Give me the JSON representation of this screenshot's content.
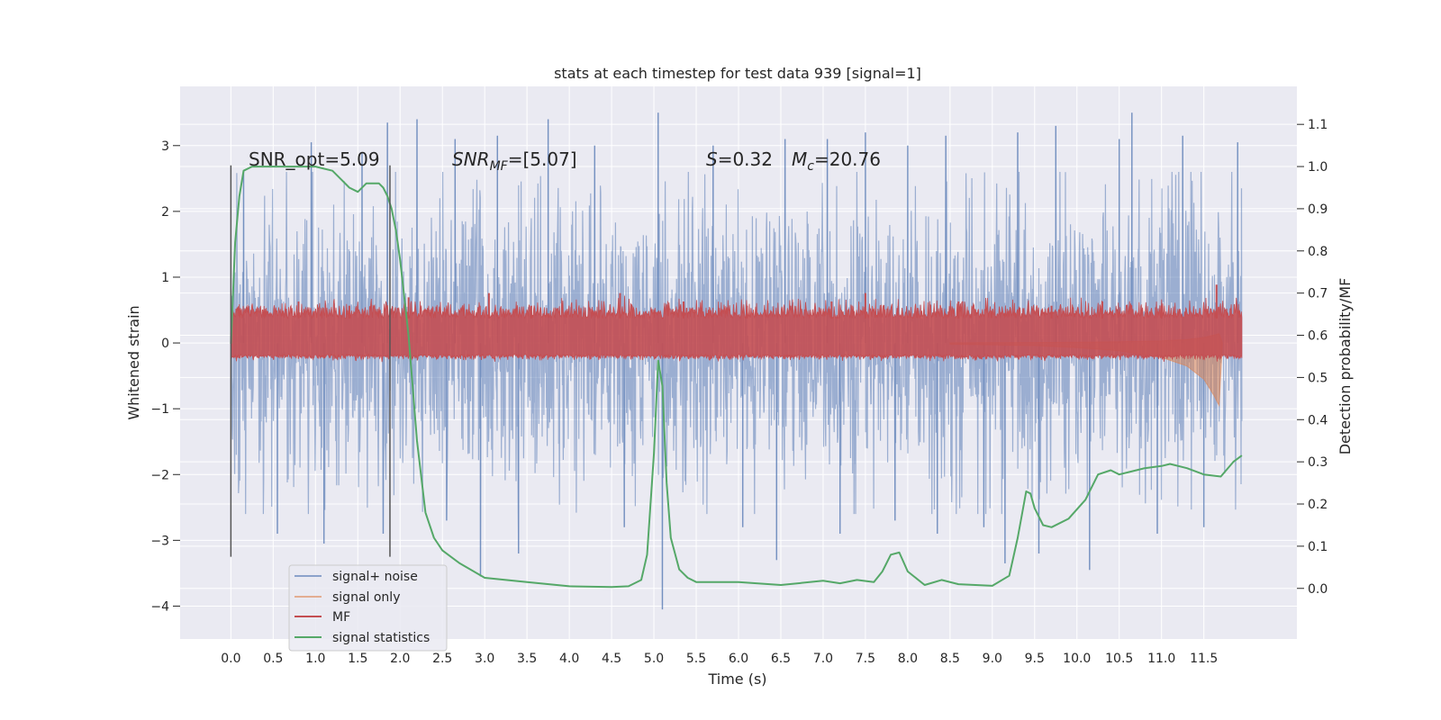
{
  "chart_data": {
    "type": "line",
    "title": "stats at each timestep for test data 939 [signal=1]",
    "xlabel": "Time (s)",
    "ylabel": "Whitened strain",
    "y2label": "Detection probability/MF",
    "xlim": [
      -0.6,
      12.6
    ],
    "ylim": [
      -4.5,
      3.9
    ],
    "y2lim": [
      -0.12,
      1.19
    ],
    "grid": true,
    "legend_position": "lower-left",
    "xticks": [
      0.0,
      0.5,
      1.0,
      1.5,
      2.0,
      2.5,
      3.0,
      3.5,
      4.0,
      4.5,
      5.0,
      5.5,
      6.0,
      6.5,
      7.0,
      7.5,
      8.0,
      8.5,
      9.0,
      9.5,
      10.0,
      10.5,
      11.0,
      11.5
    ],
    "xtick_labels": [
      "0.0",
      "0.5",
      "1.0",
      "1.5",
      "2.0",
      "2.5",
      "3.0",
      "3.5",
      "4.0",
      "4.5",
      "5.0",
      "5.5",
      "6.0",
      "6.5",
      "7.0",
      "7.5",
      "8.0",
      "8.5",
      "9.0",
      "9.5",
      "10.0",
      "10.5",
      "11.0",
      "11.5"
    ],
    "yticks": [
      -4,
      -3,
      -2,
      -1,
      0,
      1,
      2,
      3
    ],
    "ytick_labels": [
      "−4",
      "−3",
      "−2",
      "−1",
      "0",
      "1",
      "2",
      "3"
    ],
    "y2ticks": [
      0.0,
      0.1,
      0.2,
      0.3,
      0.4,
      0.5,
      0.6,
      0.7,
      0.8,
      0.9,
      1.0,
      1.1
    ],
    "y2tick_labels": [
      "0.0",
      "0.1",
      "0.2",
      "0.3",
      "0.4",
      "0.5",
      "0.6",
      "0.7",
      "0.8",
      "0.9",
      "1.0",
      "1.1"
    ],
    "annotations": {
      "snr_opt": "SNR_opt=5.09",
      "snr_mf_main": "SNR",
      "snr_mf_sub": "MF",
      "snr_mf_value": "=[5.07]",
      "s_symbol": "S",
      "s_value": "=0.32",
      "mc_symbol": "M",
      "mc_sub": "c",
      "mc_value": "=20.76"
    },
    "vertical_markers": [
      {
        "x": 0.0,
        "y_top": 2.7,
        "y_bottom": -3.25
      },
      {
        "x": 1.88,
        "y_top": 2.7,
        "y_bottom": -3.25
      }
    ],
    "series": [
      {
        "name": "signal+ noise",
        "color": "#4c72b0",
        "axis": "left",
        "style": "noise band",
        "x_range": [
          0.0,
          11.95
        ],
        "typical_range": [
          -2.0,
          2.0
        ],
        "spikes": [
          {
            "x": 0.15,
            "y": 2.6
          },
          {
            "x": 0.55,
            "y": -2.9
          },
          {
            "x": 0.95,
            "y": 3.05
          },
          {
            "x": 1.1,
            "y": -3.05
          },
          {
            "x": 1.55,
            "y": 2.9
          },
          {
            "x": 1.8,
            "y": -2.9
          },
          {
            "x": 1.85,
            "y": 3.35
          },
          {
            "x": 2.2,
            "y": 3.4
          },
          {
            "x": 2.55,
            "y": -2.7
          },
          {
            "x": 2.65,
            "y": 3.1
          },
          {
            "x": 2.95,
            "y": -3.55
          },
          {
            "x": 3.15,
            "y": 3.15
          },
          {
            "x": 3.4,
            "y": -3.2
          },
          {
            "x": 3.75,
            "y": 3.4
          },
          {
            "x": 4.3,
            "y": 3.0
          },
          {
            "x": 4.65,
            "y": -2.8
          },
          {
            "x": 5.05,
            "y": 3.5
          },
          {
            "x": 5.1,
            "y": -4.05
          },
          {
            "x": 5.7,
            "y": 3.0
          },
          {
            "x": 6.05,
            "y": -2.8
          },
          {
            "x": 6.45,
            "y": -3.3
          },
          {
            "x": 6.55,
            "y": 3.1
          },
          {
            "x": 7.05,
            "y": 3.1
          },
          {
            "x": 7.2,
            "y": -2.9
          },
          {
            "x": 7.5,
            "y": 3.2
          },
          {
            "x": 7.85,
            "y": -2.7
          },
          {
            "x": 8.0,
            "y": 3.0
          },
          {
            "x": 8.35,
            "y": -2.9
          },
          {
            "x": 8.45,
            "y": 3.15
          },
          {
            "x": 8.9,
            "y": -2.8
          },
          {
            "x": 9.15,
            "y": -3.35
          },
          {
            "x": 9.3,
            "y": 3.2
          },
          {
            "x": 9.55,
            "y": -3.2
          },
          {
            "x": 9.75,
            "y": 3.3
          },
          {
            "x": 10.15,
            "y": -3.45
          },
          {
            "x": 10.5,
            "y": 3.1
          },
          {
            "x": 10.65,
            "y": 3.5
          },
          {
            "x": 10.95,
            "y": -2.9
          },
          {
            "x": 11.25,
            "y": 3.15
          },
          {
            "x": 11.5,
            "y": -2.8
          },
          {
            "x": 11.9,
            "y": 3.05
          }
        ]
      },
      {
        "name": "signal only",
        "color": "#dd8452",
        "axis": "left",
        "style": "chirp envelope",
        "envelope": [
          {
            "x": 8.5,
            "y": 0.02
          },
          {
            "x": 9.5,
            "y": 0.04
          },
          {
            "x": 10.0,
            "y": 0.07
          },
          {
            "x": 10.5,
            "y": 0.12
          },
          {
            "x": 11.0,
            "y": 0.22
          },
          {
            "x": 11.3,
            "y": 0.35
          },
          {
            "x": 11.5,
            "y": 0.55
          },
          {
            "x": 11.62,
            "y": 0.8
          },
          {
            "x": 11.68,
            "y": 0.95
          },
          {
            "x": 11.72,
            "y": 0.0
          }
        ]
      },
      {
        "name": "MF",
        "color": "#c44e52",
        "axis": "right",
        "style": "filled band",
        "x_range": [
          0.0,
          11.95
        ],
        "band": [
          0.555,
          0.64
        ],
        "spikes": [
          {
            "x": 0.8,
            "y": 0.68
          },
          {
            "x": 1.4,
            "y": 0.67
          },
          {
            "x": 2.1,
            "y": 0.69
          },
          {
            "x": 3.05,
            "y": 0.7
          },
          {
            "x": 3.55,
            "y": 0.67
          },
          {
            "x": 4.6,
            "y": 0.7
          },
          {
            "x": 5.35,
            "y": 0.68
          },
          {
            "x": 6.1,
            "y": 0.67
          },
          {
            "x": 7.1,
            "y": 0.68
          },
          {
            "x": 7.5,
            "y": 0.7
          },
          {
            "x": 8.6,
            "y": 0.68
          },
          {
            "x": 9.7,
            "y": 0.67
          },
          {
            "x": 10.3,
            "y": 0.68
          },
          {
            "x": 11.0,
            "y": 0.67
          },
          {
            "x": 11.65,
            "y": 0.72
          }
        ]
      },
      {
        "name": "signal statistics",
        "color": "#55a868",
        "axis": "right",
        "style": "line",
        "x": [
          0.0,
          0.05,
          0.1,
          0.15,
          0.25,
          0.4,
          0.6,
          0.8,
          1.0,
          1.2,
          1.3,
          1.4,
          1.5,
          1.6,
          1.7,
          1.75,
          1.8,
          1.85,
          1.9,
          1.95,
          2.0,
          2.1,
          2.2,
          2.3,
          2.4,
          2.5,
          2.7,
          3.0,
          3.5,
          4.0,
          4.5,
          4.7,
          4.85,
          4.92,
          5.0,
          5.05,
          5.1,
          5.15,
          5.2,
          5.3,
          5.4,
          5.5,
          6.0,
          6.5,
          7.0,
          7.2,
          7.4,
          7.6,
          7.7,
          7.8,
          7.9,
          8.0,
          8.2,
          8.4,
          8.6,
          9.0,
          9.2,
          9.3,
          9.4,
          9.45,
          9.5,
          9.6,
          9.7,
          9.9,
          10.1,
          10.25,
          10.4,
          10.5,
          10.6,
          10.8,
          11.0,
          11.1,
          11.3,
          11.5,
          11.7,
          11.85,
          11.95
        ],
        "y": [
          0.58,
          0.82,
          0.93,
          0.99,
          1.0,
          1.0,
          1.0,
          1.0,
          1.0,
          0.99,
          0.97,
          0.95,
          0.94,
          0.96,
          0.96,
          0.96,
          0.95,
          0.93,
          0.9,
          0.85,
          0.78,
          0.6,
          0.35,
          0.18,
          0.12,
          0.09,
          0.06,
          0.025,
          0.015,
          0.005,
          0.003,
          0.005,
          0.02,
          0.08,
          0.32,
          0.54,
          0.48,
          0.25,
          0.12,
          0.045,
          0.025,
          0.015,
          0.015,
          0.008,
          0.018,
          0.012,
          0.02,
          0.015,
          0.04,
          0.08,
          0.085,
          0.04,
          0.008,
          0.02,
          0.01,
          0.006,
          0.03,
          0.12,
          0.23,
          0.225,
          0.19,
          0.15,
          0.145,
          0.165,
          0.21,
          0.27,
          0.28,
          0.27,
          0.275,
          0.285,
          0.29,
          0.295,
          0.285,
          0.27,
          0.265,
          0.3,
          0.315
        ]
      }
    ]
  }
}
